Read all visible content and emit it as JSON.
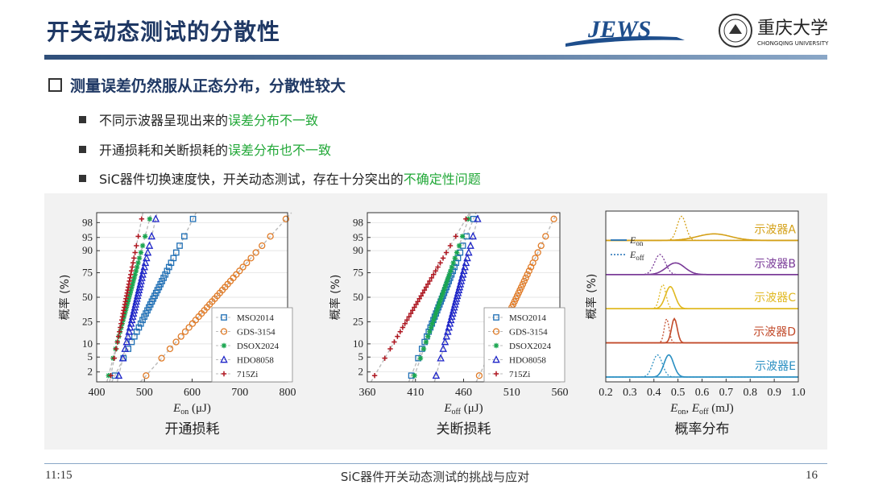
{
  "title": "开关动态测试的分散性",
  "logos": {
    "jews_text": "JEWS",
    "university_cn": "重庆大学",
    "university_en": "CHONGQING UNIVERSITY"
  },
  "main_point": "测量误差仍然服从正态分布，分散性较大",
  "sub_points": [
    {
      "plain": "不同示波器呈现出来的",
      "highlight": "误差分布不一致"
    },
    {
      "plain": "开通损耗和关断损耗的",
      "highlight": "误差分布也不一致"
    },
    {
      "plain": "SiC器件切换速度快，开关动态测试，存在十分突出的",
      "highlight": "不确定性问题"
    }
  ],
  "colors": {
    "MSO2014": "#1f6fb5",
    "GDS-3154": "#e07b27",
    "DSOX2024": "#1aa650",
    "HDO8058": "#1e25c8",
    "715Zi": "#b01822",
    "A": "#d4a017",
    "B": "#7a3b98",
    "C": "#e0b820",
    "D": "#c24a2a",
    "E": "#2a8fc2"
  },
  "chart_data": [
    {
      "type": "scatter",
      "caption": "开通损耗",
      "xlabel_main": "E",
      "xlabel_sub": "on",
      "xlabel_unit": "(μJ)",
      "ylabel": "概率 (%)",
      "xlim": [
        400,
        800
      ],
      "xticks": [
        400,
        500,
        600,
        700,
        800
      ],
      "yscale": "probability",
      "yticks": [
        2,
        5,
        10,
        25,
        50,
        75,
        90,
        95,
        98
      ],
      "legend_position": "bottom-right",
      "series": [
        {
          "name": "MSO2014",
          "marker": "square",
          "mean": 520,
          "std": 38,
          "n": 32
        },
        {
          "name": "GDS-3154",
          "marker": "circle",
          "mean": 650,
          "std": 68,
          "n": 32
        },
        {
          "name": "DSOX2024",
          "marker": "star",
          "mean": 468,
          "std": 20,
          "n": 32
        },
        {
          "name": "HDO8058",
          "marker": "triangle",
          "mean": 485,
          "std": 18,
          "n": 32
        },
        {
          "name": "715Zi",
          "marker": "plus",
          "mean": 462,
          "std": 15,
          "n": 32
        }
      ]
    },
    {
      "type": "scatter",
      "caption": "关断损耗",
      "xlabel_main": "E",
      "xlabel_sub": "off",
      "xlabel_unit": "(μJ)",
      "ylabel": "概率 (%)",
      "xlim": [
        360,
        560
      ],
      "xticks": [
        360,
        410,
        460,
        510,
        560
      ],
      "yscale": "probability",
      "yticks": [
        2,
        5,
        10,
        25,
        50,
        75,
        90,
        95,
        98
      ],
      "legend_position": "bottom-right",
      "series": [
        {
          "name": "MSO2014",
          "marker": "square",
          "mean": 438,
          "std": 15,
          "n": 32
        },
        {
          "name": "GDS-3154",
          "marker": "circle",
          "mean": 515,
          "std": 18,
          "n": 32
        },
        {
          "name": "DSOX2024",
          "marker": "star",
          "mean": 437,
          "std": 13,
          "n": 32
        },
        {
          "name": "HDO8058",
          "marker": "triangle",
          "mean": 453,
          "std": 10,
          "n": 32
        },
        {
          "name": "715Zi",
          "marker": "plus",
          "mean": 415,
          "std": 22,
          "n": 32
        }
      ]
    },
    {
      "type": "line",
      "caption": "概率分布",
      "xlabel": "E_on, E_off (mJ)",
      "xlabel_parts": [
        "E",
        "on",
        ", E",
        "off",
        " (mJ)"
      ],
      "ylabel": "概率 (%)",
      "xlim": [
        0.2,
        1.0
      ],
      "xticks": [
        "0.2",
        "0.3",
        "0.4",
        "0.5",
        "0.6",
        "0.7",
        "0.8",
        "0.9",
        "1.0"
      ],
      "legend": {
        "on": "E_on",
        "off": "E_off",
        "on_main": "E",
        "on_sub": "on",
        "off_main": "E",
        "off_sub": "off"
      },
      "legend_position": "top-left",
      "panels": [
        {
          "label": "示波器A",
          "on": {
            "mean": 0.65,
            "std": 0.068
          },
          "off": {
            "mean": 0.515,
            "std": 0.018
          }
        },
        {
          "label": "示波器B",
          "on": {
            "mean": 0.49,
            "std": 0.038
          },
          "off": {
            "mean": 0.425,
            "std": 0.022
          }
        },
        {
          "label": "示波器C",
          "on": {
            "mean": 0.468,
            "std": 0.02
          },
          "off": {
            "mean": 0.437,
            "std": 0.013
          }
        },
        {
          "label": "示波器D",
          "on": {
            "mean": 0.485,
            "std": 0.012
          },
          "off": {
            "mean": 0.453,
            "std": 0.01
          }
        },
        {
          "label": "示波器E",
          "on": {
            "mean": 0.462,
            "std": 0.02
          },
          "off": {
            "mean": 0.415,
            "std": 0.02
          }
        }
      ]
    }
  ],
  "footer": {
    "time": "11:15",
    "title": "SiC器件开关动态测试的挑战与应对",
    "page": "16"
  }
}
